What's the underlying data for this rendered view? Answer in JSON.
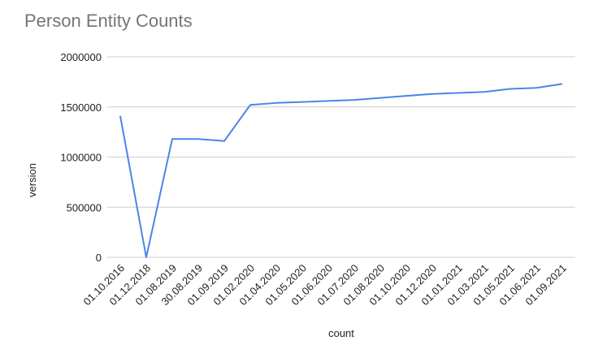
{
  "chart_data": {
    "type": "line",
    "title": "Person Entity Counts",
    "x_label": "count",
    "y_label": "version",
    "categories": [
      "01.10.2016",
      "01.12.2018",
      "01.08.2019",
      "30.08.2019",
      "01.09.2019",
      "01.02.2020",
      "01.04.2020",
      "01.05.2020",
      "01.06.2020",
      "01.07.2020",
      "01.08.2020",
      "01.10.2020",
      "01.12.2020",
      "01.01.2021",
      "01.03.2021",
      "01.05.2021",
      "01.06.2021",
      "01.09.2021"
    ],
    "series": [
      {
        "name": "version",
        "color": "#4a86e8",
        "values": [
          1410000,
          0,
          1180000,
          1180000,
          1160000,
          1520000,
          1540000,
          1550000,
          1560000,
          1570000,
          1590000,
          1610000,
          1630000,
          1640000,
          1650000,
          1680000,
          1690000,
          1730000
        ]
      }
    ],
    "ylim": [
      0,
      2000000
    ],
    "yticks": [
      0,
      500000,
      1000000,
      1500000,
      2000000
    ],
    "grid": true
  }
}
